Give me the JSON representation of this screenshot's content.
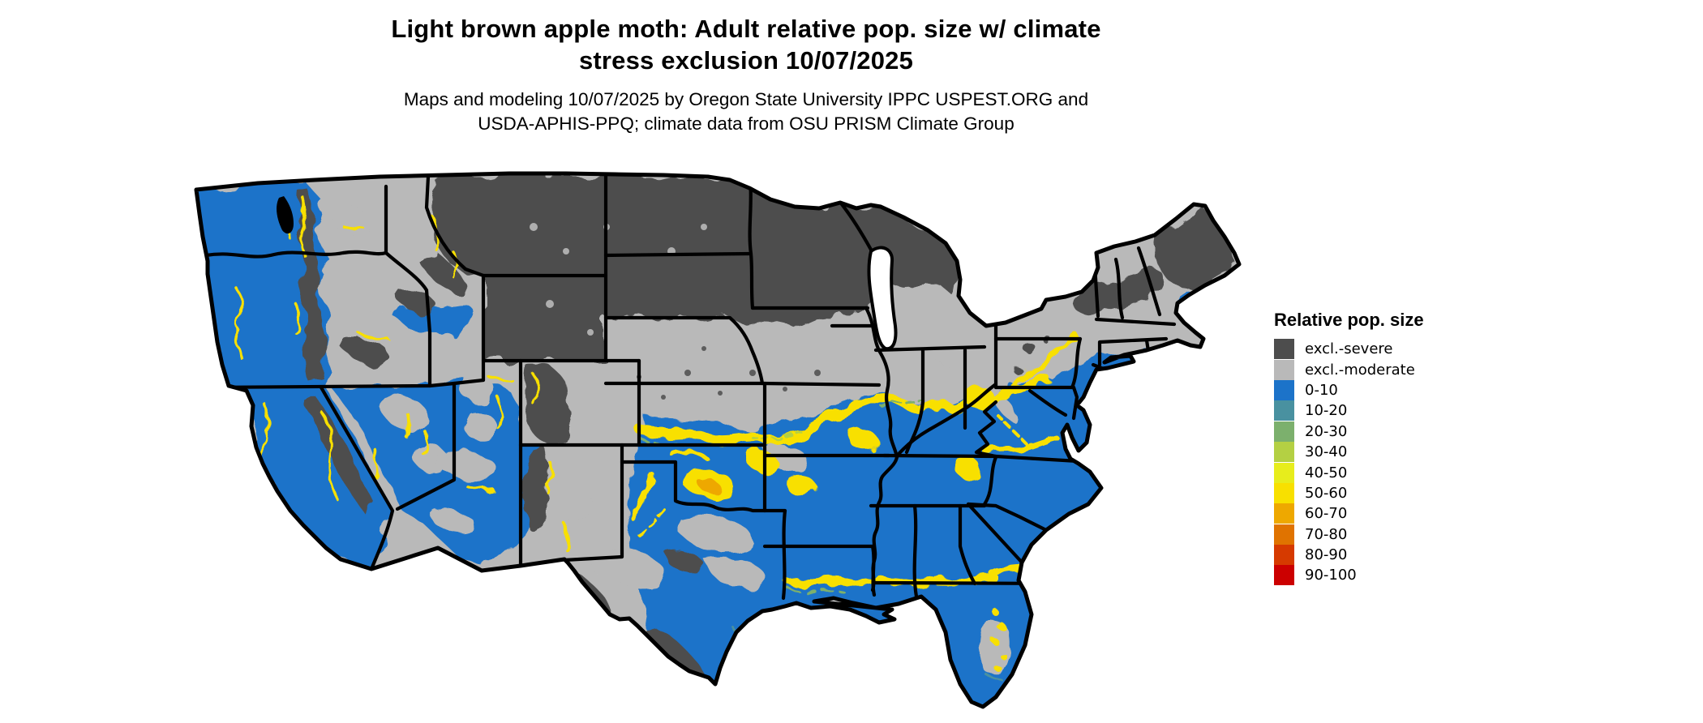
{
  "header": {
    "title_line1": "Light brown apple moth: Adult relative pop. size w/ climate",
    "title_line2": "stress exclusion 10/07/2025",
    "subtitle_line1": "Maps and modeling 10/07/2025 by Oregon State University IPPC USPEST.ORG and",
    "subtitle_line2": "USDA-APHIS-PPQ; climate data from OSU PRISM Climate Group"
  },
  "legend": {
    "title": "Relative pop. size",
    "items": [
      {
        "label": "excl.-severe",
        "color": "#4D4D4D"
      },
      {
        "label": "excl.-moderate",
        "color": "#B9B9B9"
      },
      {
        "label": "0-10",
        "color": "#1C73C9"
      },
      {
        "label": "10-20",
        "color": "#4991A0"
      },
      {
        "label": "20-30",
        "color": "#7CB06D"
      },
      {
        "label": "30-40",
        "color": "#B4D043"
      },
      {
        "label": "40-50",
        "color": "#E7ED1C"
      },
      {
        "label": "50-60",
        "color": "#F8E000"
      },
      {
        "label": "60-70",
        "color": "#EEA800"
      },
      {
        "label": "70-80",
        "color": "#E07300"
      },
      {
        "label": "80-90",
        "color": "#D63A00"
      },
      {
        "label": "90-100",
        "color": "#CC0000"
      }
    ]
  },
  "map": {
    "region": "Contiguous United States",
    "kind": "raster choropleth of relative population size with climate stress exclusion",
    "date_shown": "10/07/2025"
  }
}
